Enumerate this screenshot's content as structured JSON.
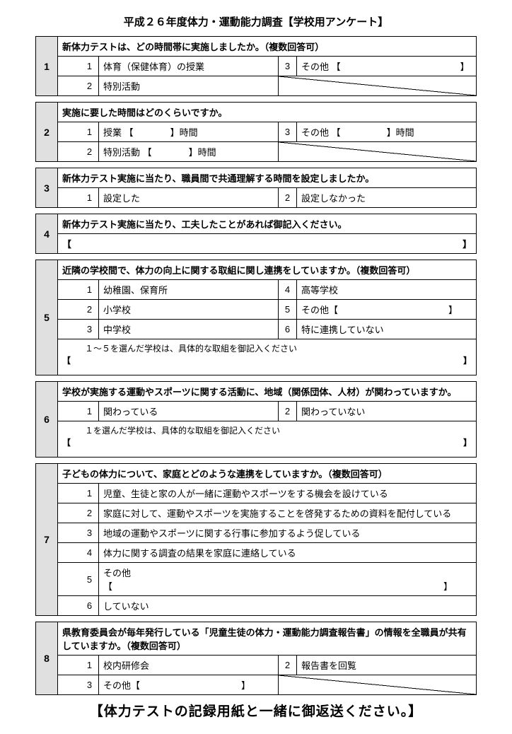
{
  "title": "平成２６年度体力・運動能力調査【学校用アンケート】",
  "footer": "【体力テストの記録用紙と一緒に御返送ください。】",
  "questions": [
    {
      "num": "1",
      "head": "新体力テストは、どの時間帯に実施しましたか。（複数回答可）",
      "rows": [
        {
          "ln": "1",
          "lt": "体育（保健体育）の授業",
          "rn": "3",
          "rt": "その他 【　　　　　　　　　　　　　】"
        },
        {
          "ln": "2",
          "lt": "特別活動",
          "diag": true
        }
      ]
    },
    {
      "num": "2",
      "head": "実施に要した時間はどのくらいですか。",
      "rows": [
        {
          "ln": "1",
          "lt": "授業 【　　　　】時間",
          "rn": "3",
          "rt": "その他 【　　　　　】時間"
        },
        {
          "ln": "2",
          "lt": "特別活動 【　　　　】時間",
          "diag": true
        }
      ]
    },
    {
      "num": "3",
      "head": "新体力テスト実施に当たり、職員間で共通理解する時間を設定しましたか。",
      "rows": [
        {
          "ln": "1",
          "lt": "設定した",
          "rn": "2",
          "rt": "設定しなかった"
        }
      ]
    },
    {
      "num": "4",
      "head": "新体力テスト実施に当たり、工夫したことがあれば御記入ください。",
      "bracket_only": true
    },
    {
      "num": "5",
      "head": "近隣の学校間で、体力の向上に関する取組に関し連携をしていますか。（複数回答可）",
      "rows": [
        {
          "ln": "1",
          "lt": "幼稚園、保育所",
          "rn": "4",
          "rt": "高等学校"
        },
        {
          "ln": "2",
          "lt": "小学校",
          "rn": "5",
          "rt": "その他【　　　　　　　　　　　　】"
        },
        {
          "ln": "3",
          "lt": "中学校",
          "rn": "6",
          "rt": "特に連携していない"
        }
      ],
      "note": "１～５を選んだ学校は、具体的な取組を御記入ください",
      "note_brackets": true
    },
    {
      "num": "6",
      "head": "学校が実施する運動やスポーツに関する活動に、地域（関係団体、人材）が関わっていますか。",
      "rows": [
        {
          "ln": "1",
          "lt": "関わっている",
          "rn": "2",
          "rt": "関わっていない"
        }
      ],
      "note": "１を選んだ学校は、具体的な取組を御記入ください",
      "note_brackets": true
    },
    {
      "num": "7",
      "head": "子どもの体力について、家庭とどのような連携をしていますか。（複数回答可）",
      "single_col": true,
      "rows": [
        {
          "ln": "1",
          "lt": "児童、生徒と家の人が一緒に運動やスポーツをする機会を設けている"
        },
        {
          "ln": "2",
          "lt": "家庭に対して、運動やスポーツを実施することを啓発するための資料を配付している"
        },
        {
          "ln": "3",
          "lt": "地域の運動やスポーツに関する行事に参加するよう促している"
        },
        {
          "ln": "4",
          "lt": "体力に関する調査の結果を家庭に連絡している"
        },
        {
          "ln": "5",
          "lt": "その他【　　　　　　　　　　　　　　　　　　　　　　　　　　　　　　　　　　　　】"
        },
        {
          "ln": "6",
          "lt": "していない"
        }
      ]
    },
    {
      "num": "8",
      "head": "県教育委員会が毎年発行している「児童生徒の体力・運動能力調査報告書」の情報を全職員が共有していますか。（複数回答可）",
      "rows": [
        {
          "ln": "1",
          "lt": "校内研修会",
          "rn": "2",
          "rt": "報告書を回覧"
        },
        {
          "ln": "3",
          "lt": "その他【　　　　　　　　　　　】",
          "diag": true
        }
      ]
    }
  ]
}
